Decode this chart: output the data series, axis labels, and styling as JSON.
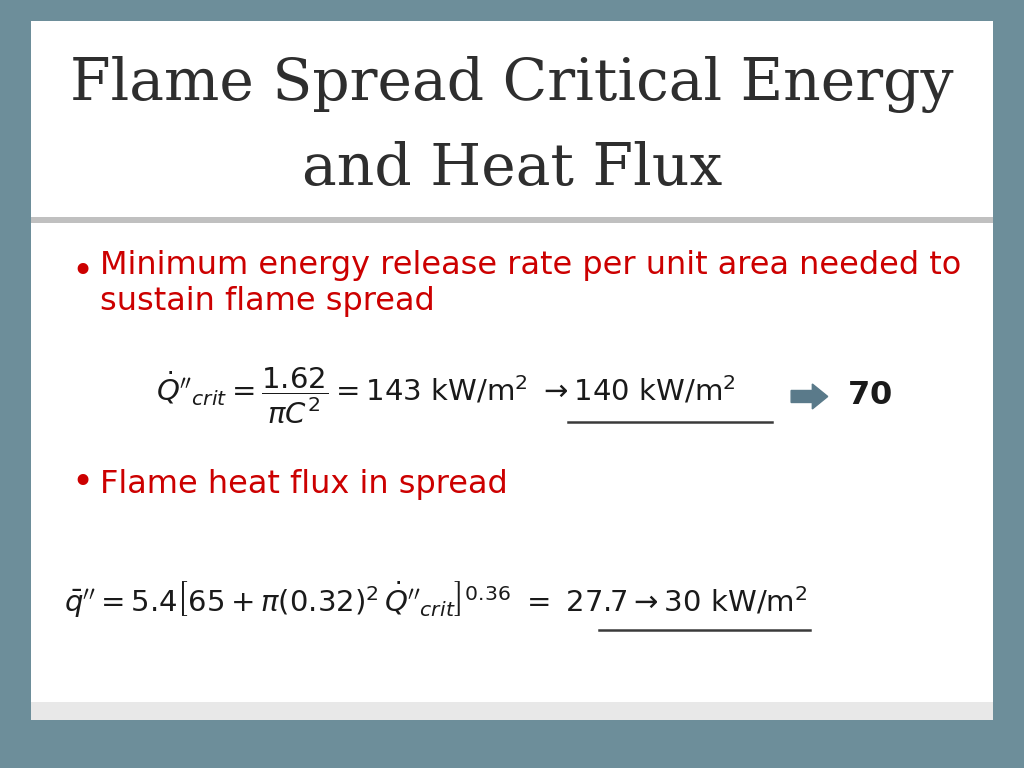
{
  "bg_outer": "#6d8e9a",
  "bg_title": "#ffffff",
  "bg_content": "#ffffff",
  "title_text_line1": "Flame Spread Critical Energy",
  "title_text_line2": "and Heat Flux",
  "title_color": "#2e2e2e",
  "title_fontsize": 42,
  "bullet1_text_line1": "Minimum energy release rate per unit area needed to",
  "bullet1_text_line2": "sustain flame spread",
  "bullet2_text": "Flame heat flux in spread",
  "bullet_color": "#cc0000",
  "bullet_fontsize": 23,
  "eq1_color": "#1a1a1a",
  "eq2_color": "#1a1a1a",
  "arrow_color": "#5a7a8a",
  "underline_color": "#3a3a3a",
  "sep_color": "#c0c0c0",
  "footer_color": "#e8e8e8"
}
